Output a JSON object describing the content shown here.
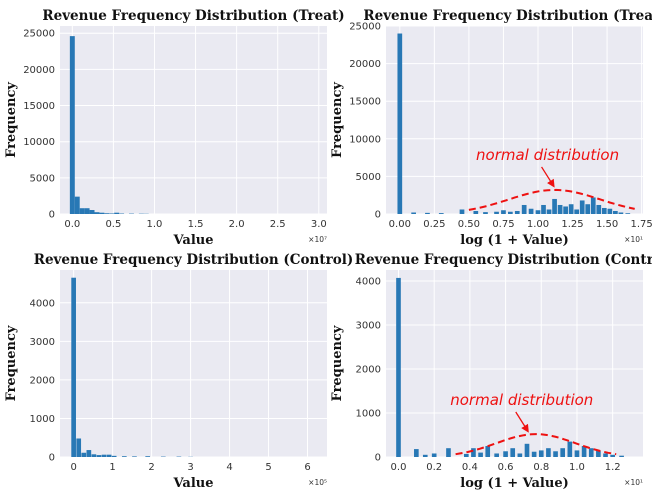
{
  "colors": {
    "bar": "#2878b5",
    "plot_bg": "#eaeaf2",
    "grid": "#ffffff",
    "annotation": "#ee1111"
  },
  "chart_data": [
    {
      "type": "bar",
      "title": "Revenue Frequency Distribution (Treat)",
      "xlabel": "Value",
      "ylabel": "Frequency",
      "xlim": [
        -0.15,
        3.1
      ],
      "ylim": [
        0,
        26000
      ],
      "x_scale_label": "×10⁷",
      "xticks": [
        0,
        0.5,
        1,
        1.5,
        2,
        2.5,
        3
      ],
      "xtick_labels": [
        "0.0",
        "0.5",
        "1.0",
        "1.5",
        "2.0",
        "2.5",
        "3.0"
      ],
      "yticks": [
        0,
        5000,
        10000,
        15000,
        20000,
        25000
      ],
      "ytick_labels": [
        "0",
        "5000",
        "10000",
        "15000",
        "20000",
        "25000"
      ],
      "grid": true,
      "bin_width": 0.06,
      "x": [
        0,
        0.06,
        0.12,
        0.18,
        0.24,
        0.3,
        0.36,
        0.42,
        0.48,
        0.54,
        0.6,
        0.72,
        0.84,
        0.9
      ],
      "values": [
        24600,
        2400,
        800,
        800,
        550,
        250,
        180,
        100,
        70,
        180,
        60,
        50,
        40,
        30
      ]
    },
    {
      "type": "bar",
      "title": "Revenue Frequency Distribution (Treat)",
      "xlabel": "log (1 + Value)",
      "ylabel": "Frequency",
      "xlim": [
        -0.1,
        1.76
      ],
      "ylim": [
        0,
        25000
      ],
      "x_scale_label": "×10¹",
      "xticks": [
        0,
        0.25,
        0.5,
        0.75,
        1,
        1.25,
        1.5,
        1.75
      ],
      "xtick_labels": [
        "0.00",
        "0.25",
        "0.50",
        "0.75",
        "1.00",
        "1.25",
        "1.50",
        "1.75"
      ],
      "yticks": [
        0,
        5000,
        10000,
        15000,
        20000,
        25000
      ],
      "ytick_labels": [
        "0",
        "5000",
        "10000",
        "15000",
        "20000",
        "25000"
      ],
      "grid": true,
      "bin_width": 0.034,
      "x": [
        0,
        0.1,
        0.2,
        0.3,
        0.45,
        0.55,
        0.62,
        0.7,
        0.75,
        0.8,
        0.85,
        0.9,
        0.95,
        1.0,
        1.04,
        1.08,
        1.12,
        1.16,
        1.2,
        1.24,
        1.28,
        1.32,
        1.36,
        1.4,
        1.44,
        1.48,
        1.52,
        1.56,
        1.6,
        1.65
      ],
      "values": [
        24000,
        200,
        150,
        120,
        600,
        400,
        250,
        300,
        500,
        300,
        400,
        1200,
        700,
        500,
        1200,
        600,
        2000,
        1200,
        1000,
        1300,
        600,
        1800,
        1300,
        2200,
        1200,
        800,
        700,
        400,
        200,
        100
      ],
      "annotation": {
        "text": "normal distribution",
        "arrow_to": [
          1.12,
          3200
        ]
      },
      "normal_curve": {
        "mean": 1.12,
        "std": 0.33,
        "peak": 3200,
        "range": [
          0.5,
          1.7
        ]
      }
    },
    {
      "type": "bar",
      "title": "Revenue Frequency Distribution (Control)",
      "xlabel": "Value",
      "ylabel": "Frequency",
      "xlim": [
        -0.35,
        6.5
      ],
      "ylim": [
        0,
        4850
      ],
      "x_scale_label": "×10⁵",
      "xticks": [
        0,
        1,
        2,
        3,
        4,
        5,
        6
      ],
      "xtick_labels": [
        "0",
        "1",
        "2",
        "3",
        "4",
        "5",
        "6"
      ],
      "yticks": [
        0,
        1000,
        2000,
        3000,
        4000
      ],
      "ytick_labels": [
        "0",
        "1000",
        "2000",
        "3000",
        "4000"
      ],
      "grid": true,
      "bin_width": 0.12,
      "x": [
        0,
        0.13,
        0.26,
        0.39,
        0.52,
        0.65,
        0.78,
        0.91,
        1.04,
        1.3,
        1.56,
        1.9,
        2.3,
        2.7,
        3.0
      ],
      "values": [
        4650,
        480,
        110,
        180,
        70,
        50,
        60,
        60,
        30,
        20,
        15,
        20,
        10,
        10,
        5
      ]
    },
    {
      "type": "bar",
      "title": "Revenue Frequency Distribution (Control)",
      "xlabel": "log (1 + Value)",
      "ylabel": "Frequency",
      "xlim": [
        -0.07,
        1.37
      ],
      "ylim": [
        0,
        4250
      ],
      "x_scale_label": "×10¹",
      "xticks": [
        0,
        0.2,
        0.4,
        0.6,
        0.8,
        1.0,
        1.2
      ],
      "xtick_labels": [
        "0.0",
        "0.2",
        "0.4",
        "0.6",
        "0.8",
        "1.0",
        "1.2"
      ],
      "yticks": [
        0,
        1000,
        2000,
        3000,
        4000
      ],
      "ytick_labels": [
        "0",
        "1000",
        "2000",
        "3000",
        "4000"
      ],
      "grid": true,
      "bin_width": 0.026,
      "x": [
        0,
        0.1,
        0.15,
        0.2,
        0.28,
        0.38,
        0.42,
        0.46,
        0.5,
        0.55,
        0.6,
        0.64,
        0.68,
        0.72,
        0.76,
        0.8,
        0.84,
        0.88,
        0.92,
        0.96,
        1.0,
        1.04,
        1.08,
        1.12,
        1.16,
        1.2,
        1.25
      ],
      "values": [
        4070,
        180,
        50,
        80,
        200,
        70,
        200,
        100,
        250,
        80,
        130,
        200,
        80,
        300,
        120,
        150,
        200,
        130,
        200,
        350,
        150,
        250,
        200,
        140,
        80,
        50,
        30
      ],
      "annotation": {
        "text": "normal distribution",
        "arrow_to": [
          0.73,
          500
        ]
      },
      "normal_curve": {
        "mean": 0.77,
        "std": 0.22,
        "peak": 520,
        "range": [
          0.32,
          1.22
        ]
      }
    }
  ]
}
